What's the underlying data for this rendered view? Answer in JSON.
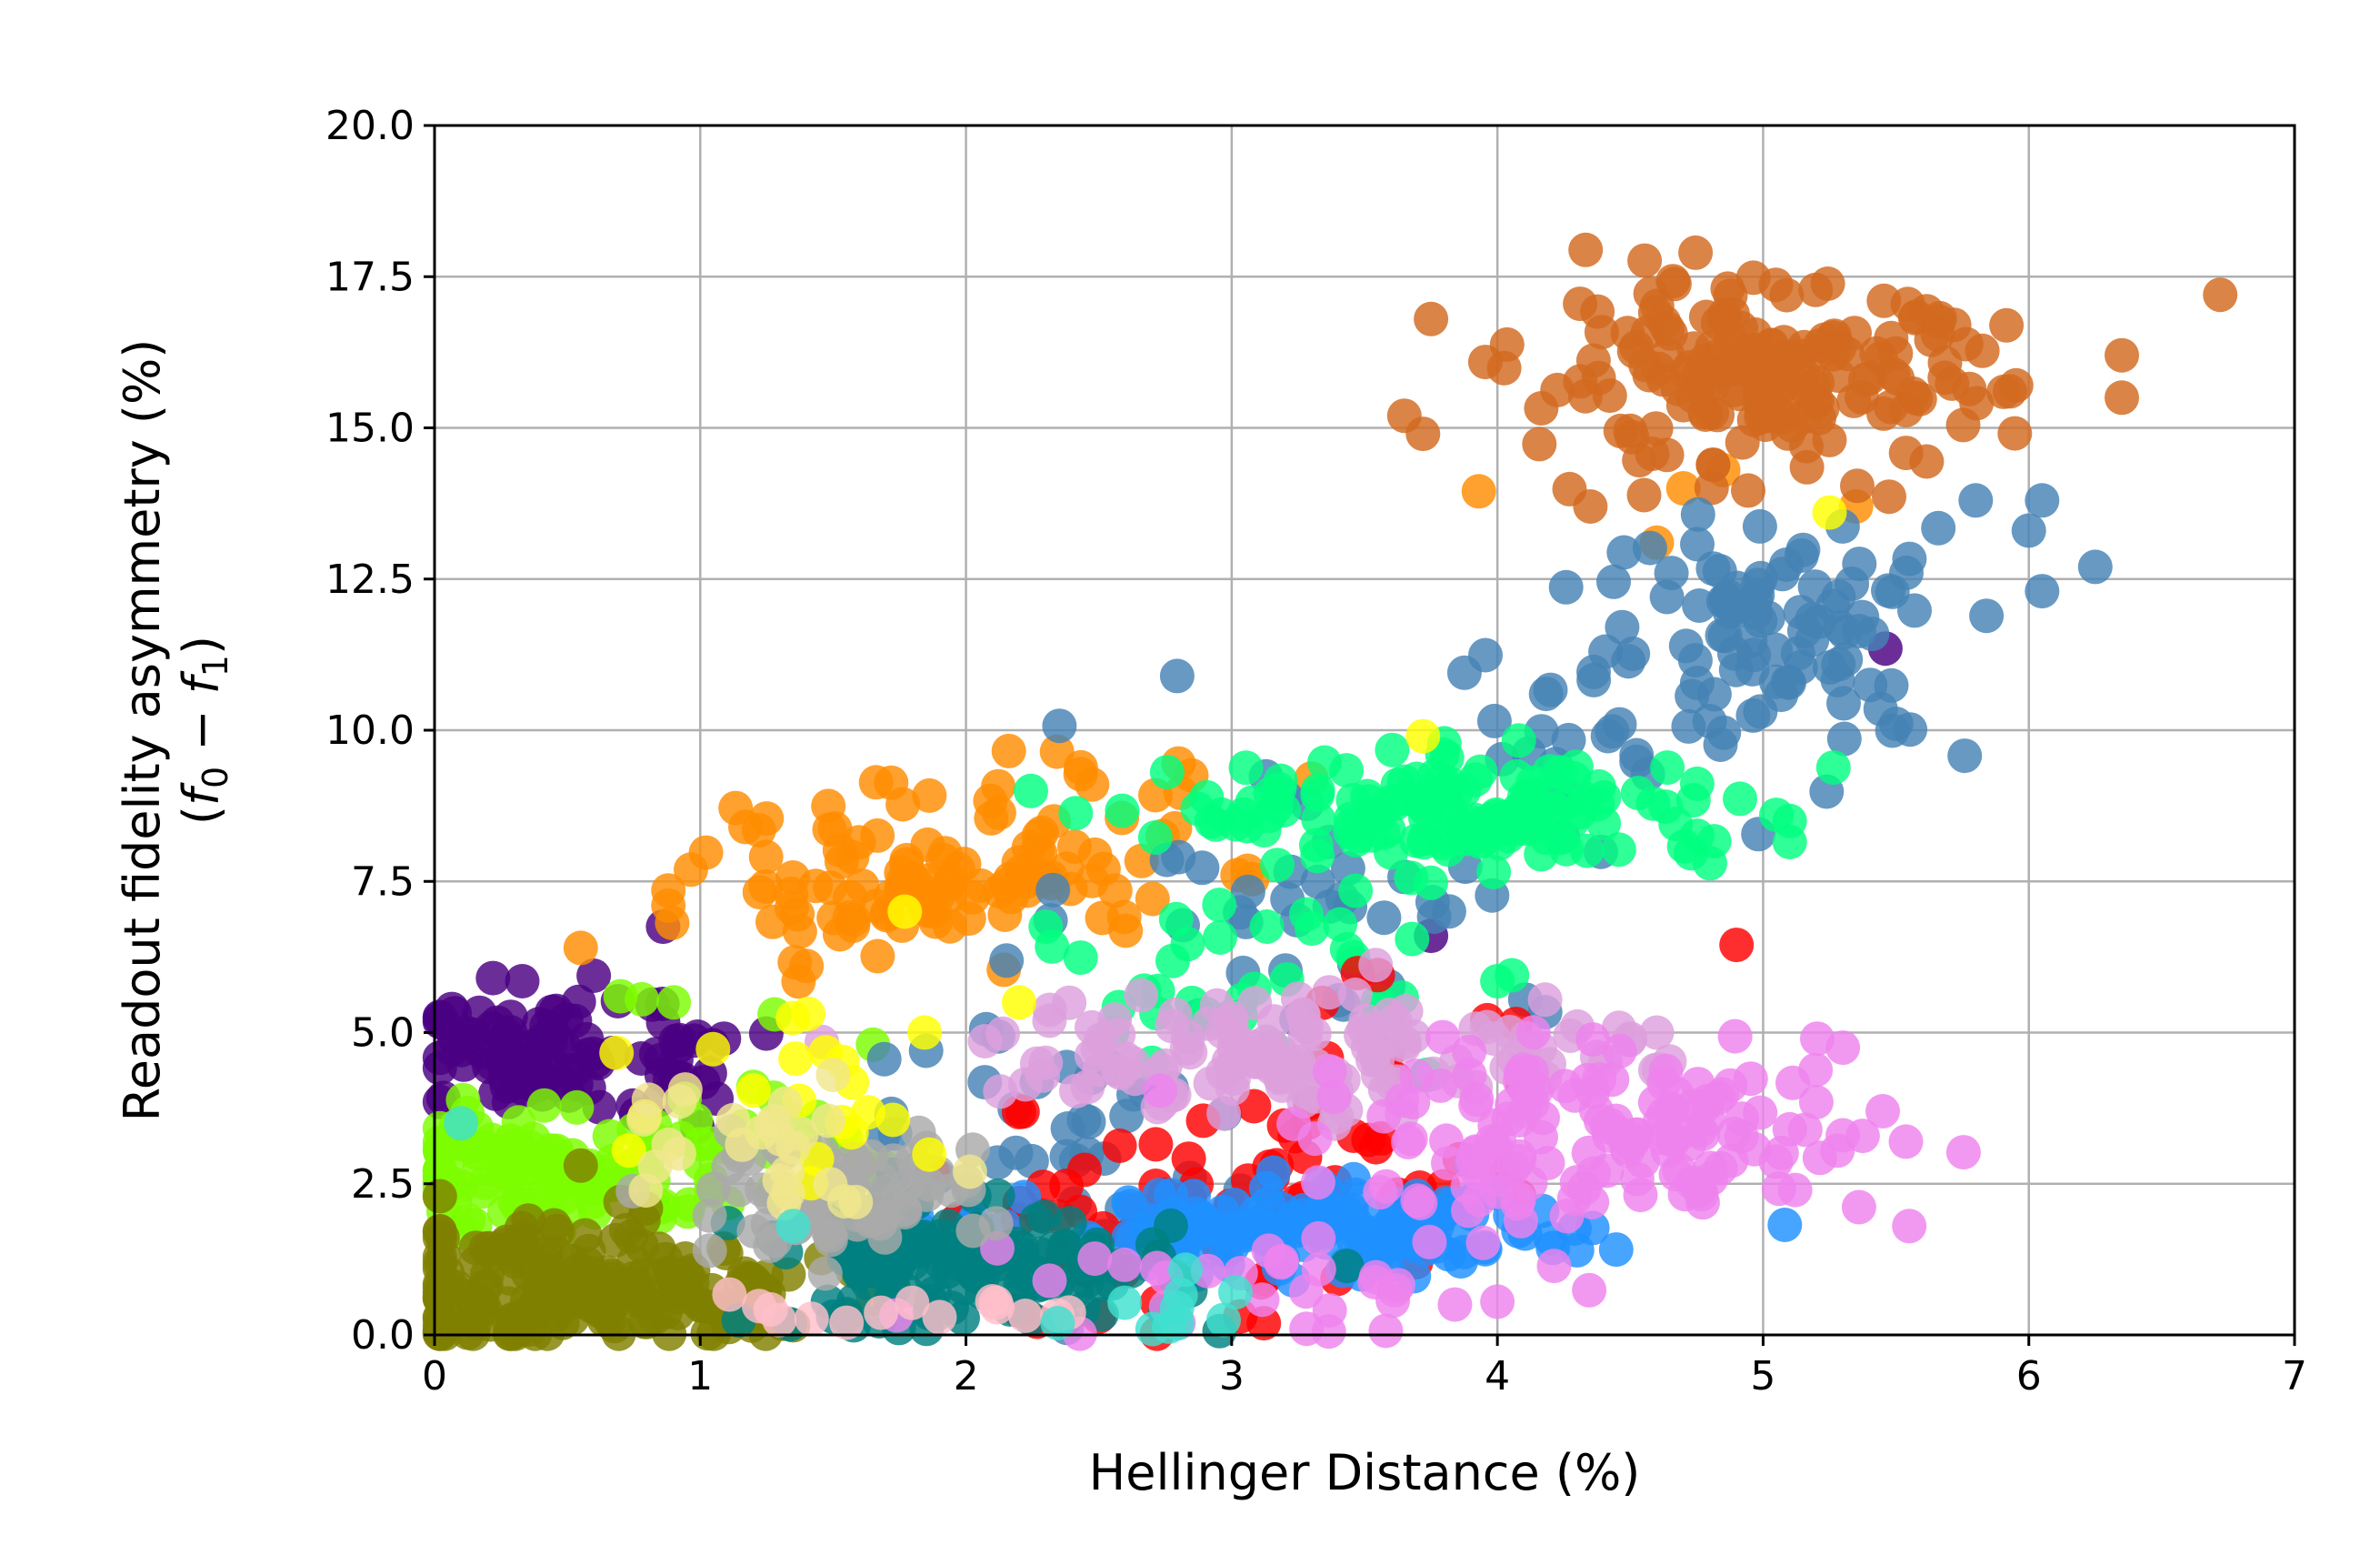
{
  "chart_data": {
    "type": "scatter",
    "title": "",
    "xlabel": "Hellinger Distance (%)",
    "ylabel_line1": "Readout fidelity asymmetry (%)",
    "ylabel_line2_parts": [
      "(",
      "f",
      "0",
      " − ",
      "f",
      "1",
      ")"
    ],
    "xlim": [
      0,
      7
    ],
    "ylim": [
      0,
      20
    ],
    "xticks": [
      "0",
      "1",
      "2",
      "3",
      "4",
      "5",
      "6",
      "7"
    ],
    "yticks": [
      "0.0",
      "2.5",
      "5.0",
      "7.5",
      "10.0",
      "12.5",
      "15.0",
      "17.5",
      "20.0"
    ],
    "grid": true,
    "legend": "none",
    "series": [
      {
        "color": "#4b0082",
        "clusters": [
          {
            "cx": 0.35,
            "cy": 4.6,
            "sx": 0.25,
            "sy": 0.45,
            "n": 80
          },
          {
            "cx": 0.85,
            "cy": 4.4,
            "sx": 0.15,
            "sy": 0.5,
            "n": 25
          }
        ],
        "points": [
          [
            0.22,
            5.9
          ],
          [
            0.33,
            5.85
          ],
          [
            0.86,
            6.75
          ],
          [
            5.46,
            11.35
          ],
          [
            3.75,
            6.6
          ]
        ]
      },
      {
        "color": "#7cfc00",
        "clusters": [
          {
            "cx": 0.45,
            "cy": 2.8,
            "sx": 0.35,
            "sy": 0.55,
            "n": 110
          },
          {
            "cx": 1.1,
            "cy": 3.0,
            "sx": 0.25,
            "sy": 0.5,
            "n": 25
          }
        ],
        "points": [
          [
            0.7,
            5.6
          ],
          [
            0.78,
            5.55
          ],
          [
            0.9,
            5.5
          ],
          [
            1.2,
            4.1
          ],
          [
            1.65,
            4.8
          ],
          [
            1.58,
            2.1
          ],
          [
            1.28,
            5.3
          ]
        ]
      },
      {
        "color": "#808000",
        "clusters": [
          {
            "cx": 0.4,
            "cy": 0.8,
            "sx": 0.35,
            "sy": 0.55,
            "n": 160
          },
          {
            "cx": 1.0,
            "cy": 0.6,
            "sx": 0.25,
            "sy": 0.4,
            "n": 40
          }
        ],
        "points": [
          [
            0.55,
            2.8
          ],
          [
            0.7,
            2.2
          ],
          [
            1.25,
            0.3
          ],
          [
            1.55,
            0.3
          ],
          [
            1.65,
            0.6
          ]
        ]
      },
      {
        "color": "#ff8c00",
        "clusters": [
          {
            "cx": 1.9,
            "cy": 7.5,
            "sx": 0.45,
            "sy": 0.55,
            "n": 110
          },
          {
            "cx": 2.3,
            "cy": 9.0,
            "sx": 0.35,
            "sy": 0.35,
            "n": 14
          }
        ],
        "points": [
          [
            0.88,
            7.35
          ],
          [
            0.88,
            7.1
          ],
          [
            0.55,
            6.4
          ],
          [
            1.17,
            8.4
          ],
          [
            1.4,
            6.1
          ],
          [
            2.8,
            9.45
          ],
          [
            3.3,
            9.2
          ],
          [
            4.6,
            13.1
          ],
          [
            4.7,
            14.0
          ],
          [
            3.93,
            13.95
          ],
          [
            5.35,
            13.7
          ],
          [
            4.85,
            14.3
          ]
        ]
      },
      {
        "color": "#d2691e",
        "clusters": [
          {
            "cx": 5.0,
            "cy": 15.8,
            "sx": 0.45,
            "sy": 0.75,
            "n": 190
          }
        ],
        "points": [
          [
            6.72,
            17.2
          ],
          [
            6.35,
            16.2
          ],
          [
            6.35,
            15.5
          ],
          [
            3.75,
            16.8
          ],
          [
            3.65,
            15.2
          ],
          [
            3.72,
            14.9
          ],
          [
            4.35,
            13.7
          ]
        ]
      },
      {
        "color": "#4682b4",
        "clusters": [
          {
            "cx": 5.1,
            "cy": 11.6,
            "sx": 0.35,
            "sy": 1.0,
            "n": 95
          },
          {
            "cx": 4.3,
            "cy": 10.0,
            "sx": 0.25,
            "sy": 1.0,
            "n": 25
          },
          {
            "cx": 3.3,
            "cy": 7.5,
            "sx": 0.45,
            "sy": 1.2,
            "n": 40
          },
          {
            "cx": 2.35,
            "cy": 3.5,
            "sx": 0.4,
            "sy": 1.0,
            "n": 40
          }
        ],
        "points": [
          [
            6.05,
            13.8
          ],
          [
            6.0,
            13.3
          ],
          [
            6.05,
            12.3
          ],
          [
            6.25,
            12.7
          ],
          [
            5.8,
            13.8
          ],
          [
            1.85,
            4.7
          ],
          [
            2.8,
            7.9
          ]
        ]
      },
      {
        "color": "#00ff7f",
        "clusters": [
          {
            "cx": 3.9,
            "cy": 8.6,
            "sx": 0.55,
            "sy": 0.45,
            "n": 150
          },
          {
            "cx": 3.1,
            "cy": 6.0,
            "sx": 0.35,
            "sy": 0.7,
            "n": 35
          }
        ],
        "points": [
          [
            5.05,
            8.6
          ],
          [
            5.1,
            8.5
          ],
          [
            4.8,
            7.8
          ],
          [
            2.7,
            4.5
          ],
          [
            2.55,
            5.0
          ],
          [
            2.3,
            6.75
          ],
          [
            4.0,
            5.85
          ]
        ]
      },
      {
        "color": "#ff0000",
        "clusters": [
          {
            "cx": 2.7,
            "cy": 2.0,
            "sx": 0.45,
            "sy": 0.9,
            "n": 55
          },
          {
            "cx": 3.5,
            "cy": 3.0,
            "sx": 0.35,
            "sy": 1.2,
            "n": 30
          }
        ],
        "points": [
          [
            4.9,
            6.45
          ],
          [
            3.55,
            5.95
          ],
          [
            2.5,
            0.3
          ],
          [
            2.2,
            0.4
          ]
        ]
      },
      {
        "color": "#1e90ff",
        "clusters": [
          {
            "cx": 3.3,
            "cy": 1.7,
            "sx": 0.5,
            "sy": 0.35,
            "n": 150
          }
        ],
        "points": [
          [
            4.2,
            1.6
          ],
          [
            4.3,
            1.4
          ],
          [
            3.95,
            1.45
          ]
        ]
      },
      {
        "color": "#008080",
        "clusters": [
          {
            "cx": 2.0,
            "cy": 1.1,
            "sx": 0.4,
            "sy": 0.5,
            "n": 130
          }
        ],
        "points": [
          [
            1.5,
            0.3
          ],
          [
            2.55,
            0.85
          ],
          [
            2.8,
            0.9
          ]
        ]
      },
      {
        "color": "#dda0dd",
        "clusters": [
          {
            "cx": 3.3,
            "cy": 4.7,
            "sx": 0.6,
            "sy": 0.55,
            "n": 140
          }
        ],
        "points": [
          [
            2.3,
            4.5
          ],
          [
            4.6,
            5.0
          ],
          [
            4.5,
            4.9
          ]
        ]
      },
      {
        "color": "#ee82ee",
        "clusters": [
          {
            "cx": 4.4,
            "cy": 3.2,
            "sx": 0.55,
            "sy": 0.7,
            "n": 150
          },
          {
            "cx": 3.3,
            "cy": 0.8,
            "sx": 0.5,
            "sy": 0.5,
            "n": 30
          }
        ],
        "points": [
          [
            5.55,
            1.8
          ],
          [
            5.45,
            3.7
          ],
          [
            5.3,
            4.75
          ],
          [
            5.3,
            3.3
          ],
          [
            5.2,
            3.85
          ],
          [
            5.1,
            3.4
          ],
          [
            4.0,
            0.55
          ],
          [
            2.8,
            0.2
          ]
        ]
      },
      {
        "color": "#a9a9a9",
        "clusters": [
          {
            "cx": 1.45,
            "cy": 2.3,
            "sx": 0.3,
            "sy": 0.45,
            "n": 70
          }
        ],
        "points": [
          [
            1.8,
            2.9
          ],
          [
            2.0,
            2.55
          ]
        ]
      },
      {
        "color": "#ffff00",
        "clusters": [
          {
            "cx": 1.5,
            "cy": 4.2,
            "sx": 0.3,
            "sy": 0.9,
            "n": 20
          }
        ],
        "points": [
          [
            1.77,
            7.0
          ],
          [
            3.72,
            9.9
          ],
          [
            5.25,
            13.6
          ],
          [
            2.2,
            5.5
          ]
        ]
      },
      {
        "color": "#f0e68c",
        "clusters": [
          {
            "cx": 1.2,
            "cy": 3.4,
            "sx": 0.3,
            "sy": 0.6,
            "n": 25
          }
        ],
        "points": [
          [
            1.5,
            4.3
          ],
          [
            1.35,
            3.1
          ]
        ]
      },
      {
        "color": "#ffc0cb",
        "clusters": [
          {
            "cx": 1.6,
            "cy": 0.4,
            "sx": 0.3,
            "sy": 0.3,
            "n": 15
          }
        ],
        "points": []
      },
      {
        "color": "#40e0d0",
        "clusters": [
          {
            "cx": 2.7,
            "cy": 0.6,
            "sx": 0.2,
            "sy": 0.3,
            "n": 10
          }
        ],
        "points": [
          [
            0.1,
            3.5
          ],
          [
            1.35,
            1.8
          ]
        ]
      }
    ]
  }
}
